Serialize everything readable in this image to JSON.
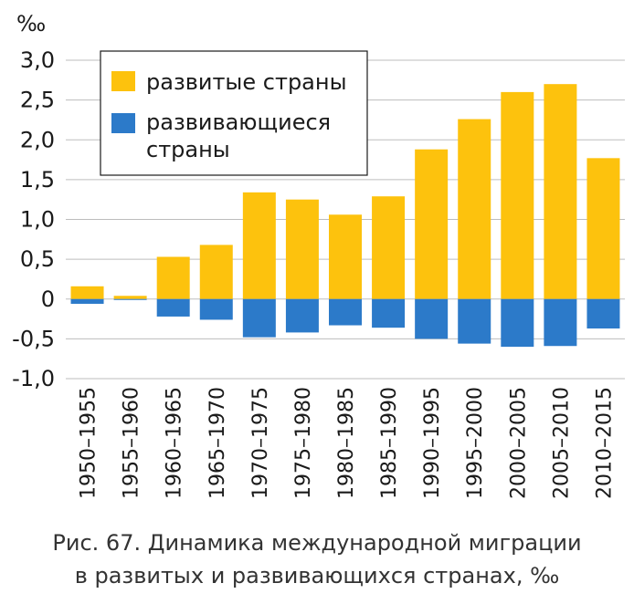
{
  "chart_data": {
    "type": "bar",
    "stacked": true,
    "unit_label": "‰",
    "categories": [
      "1950–1955",
      "1955–1960",
      "1960–1965",
      "1965–1970",
      "1970–1975",
      "1975–1980",
      "1980–1985",
      "1985–1990",
      "1990–1995",
      "1995–2000",
      "2000–2005",
      "2005–2010",
      "2010–2015"
    ],
    "series": [
      {
        "name": "развитые страны",
        "color": "#FDC20D",
        "values": [
          0.16,
          0.04,
          0.53,
          0.68,
          1.34,
          1.25,
          1.06,
          1.29,
          1.88,
          2.26,
          2.6,
          2.7,
          1.77
        ]
      },
      {
        "name_lines": [
          "развивающиеся",
          "страны"
        ],
        "color": "#2C7AC9",
        "values": [
          -0.06,
          -0.01,
          -0.22,
          -0.26,
          -0.48,
          -0.42,
          -0.33,
          -0.36,
          -0.5,
          -0.56,
          -0.6,
          -0.59,
          -0.37
        ]
      }
    ],
    "ylim": [
      -1.0,
      3.0
    ],
    "yticks": [
      3.0,
      2.5,
      2.0,
      1.5,
      1.0,
      0.5,
      0,
      -0.5,
      -1.0
    ],
    "ytick_labels": [
      "3,0",
      "2,5",
      "2,0",
      "1,5",
      "1,0",
      "0,5",
      "0",
      "-0,5",
      "-1,0"
    ],
    "legend_position": "top-left"
  },
  "caption": {
    "line1": "Рис. 67. Динамика международной миграции",
    "line2": "в развитых и развивающихся странах, ‰"
  }
}
